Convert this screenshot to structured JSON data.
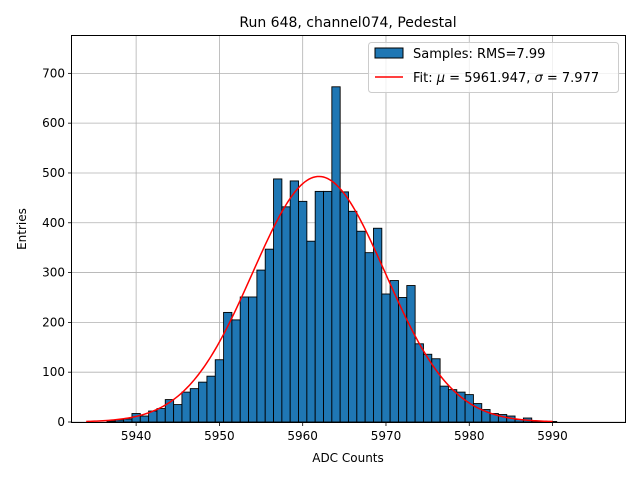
{
  "chart_data": {
    "type": "bar",
    "title": "Run 648, channel074, Pedestal",
    "xlabel": "ADC Counts",
    "ylabel": "Entries",
    "xlim": [
      5932.3,
      5998.7
    ],
    "ylim": [
      0,
      777
    ],
    "x_ticks": [
      5940,
      5950,
      5960,
      5970,
      5980,
      5990
    ],
    "y_ticks": [
      0,
      100,
      200,
      300,
      400,
      500,
      600,
      700
    ],
    "grid": true,
    "legend_position": "top-right",
    "bar_color": "#1f77b4",
    "fit_color": "#ff0000",
    "bin_width": 1,
    "series": [
      {
        "name": "Samples: RMS=7.99",
        "bins": [
          [
            5937,
            2
          ],
          [
            5938,
            4
          ],
          [
            5939,
            6
          ],
          [
            5940,
            17
          ],
          [
            5941,
            12
          ],
          [
            5942,
            22
          ],
          [
            5943,
            27
          ],
          [
            5944,
            45
          ],
          [
            5945,
            35
          ],
          [
            5946,
            60
          ],
          [
            5947,
            67
          ],
          [
            5948,
            80
          ],
          [
            5949,
            92
          ],
          [
            5950,
            125
          ],
          [
            5951,
            220
          ],
          [
            5952,
            205
          ],
          [
            5953,
            251
          ],
          [
            5954,
            251
          ],
          [
            5955,
            305
          ],
          [
            5956,
            347
          ],
          [
            5957,
            488
          ],
          [
            5958,
            432
          ],
          [
            5959,
            484
          ],
          [
            5960,
            443
          ],
          [
            5961,
            363
          ],
          [
            5962,
            463
          ],
          [
            5963,
            463
          ],
          [
            5964,
            673
          ],
          [
            5965,
            462
          ],
          [
            5966,
            423
          ],
          [
            5967,
            383
          ],
          [
            5968,
            340
          ],
          [
            5969,
            389
          ],
          [
            5970,
            257
          ],
          [
            5971,
            284
          ],
          [
            5972,
            250
          ],
          [
            5973,
            274
          ],
          [
            5974,
            157
          ],
          [
            5975,
            136
          ],
          [
            5976,
            127
          ],
          [
            5977,
            72
          ],
          [
            5978,
            65
          ],
          [
            5979,
            60
          ],
          [
            5980,
            55
          ],
          [
            5981,
            37
          ],
          [
            5982,
            25
          ],
          [
            5983,
            17
          ],
          [
            5984,
            15
          ],
          [
            5985,
            12
          ],
          [
            5986,
            5
          ],
          [
            5987,
            8
          ],
          [
            5988,
            2
          ],
          [
            5989,
            1
          ],
          [
            5990,
            1
          ]
        ]
      },
      {
        "name_prefix": "Fit: ",
        "name_mu": "μ",
        "name_mid": " = 5961.947, ",
        "name_sigma": "σ",
        "name_suffix": " = 7.977",
        "type": "line",
        "gaussian": {
          "amplitude": 493,
          "mu": 5961.947,
          "sigma": 7.977
        },
        "x_range": [
          5934,
          5990
        ]
      }
    ]
  }
}
